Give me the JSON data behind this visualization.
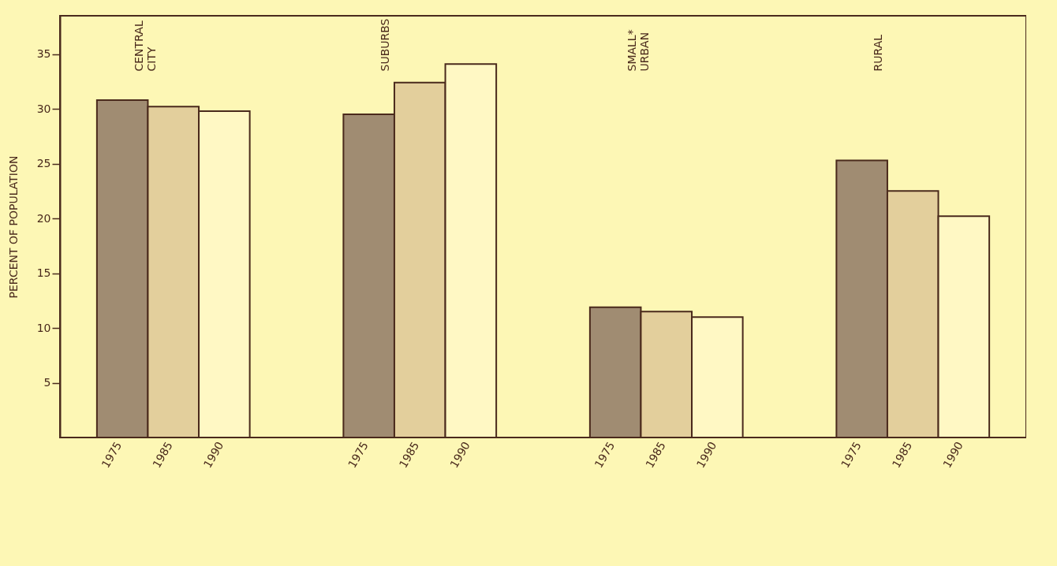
{
  "chart_data": {
    "type": "bar",
    "categories": [
      "CENTRAL CITY",
      "SUBURBS",
      "SMALL* URBAN",
      "RURAL"
    ],
    "series": [
      {
        "name": "1975",
        "color": "#a08c72",
        "values": [
          30.8,
          29.5,
          11.9,
          25.3
        ]
      },
      {
        "name": "1985",
        "color": "#e3cf9c",
        "values": [
          30.2,
          32.4,
          11.5,
          22.5
        ]
      },
      {
        "name": "1990",
        "color": "#fff8c4",
        "values": [
          29.8,
          34.1,
          11.0,
          20.2
        ]
      }
    ],
    "ylabel": "PERCENT OF POPULATION",
    "ylim": [
      0,
      38.5
    ],
    "yticks": [
      5,
      10,
      15,
      20,
      25,
      30,
      35
    ],
    "grid": false,
    "legend": false
  }
}
